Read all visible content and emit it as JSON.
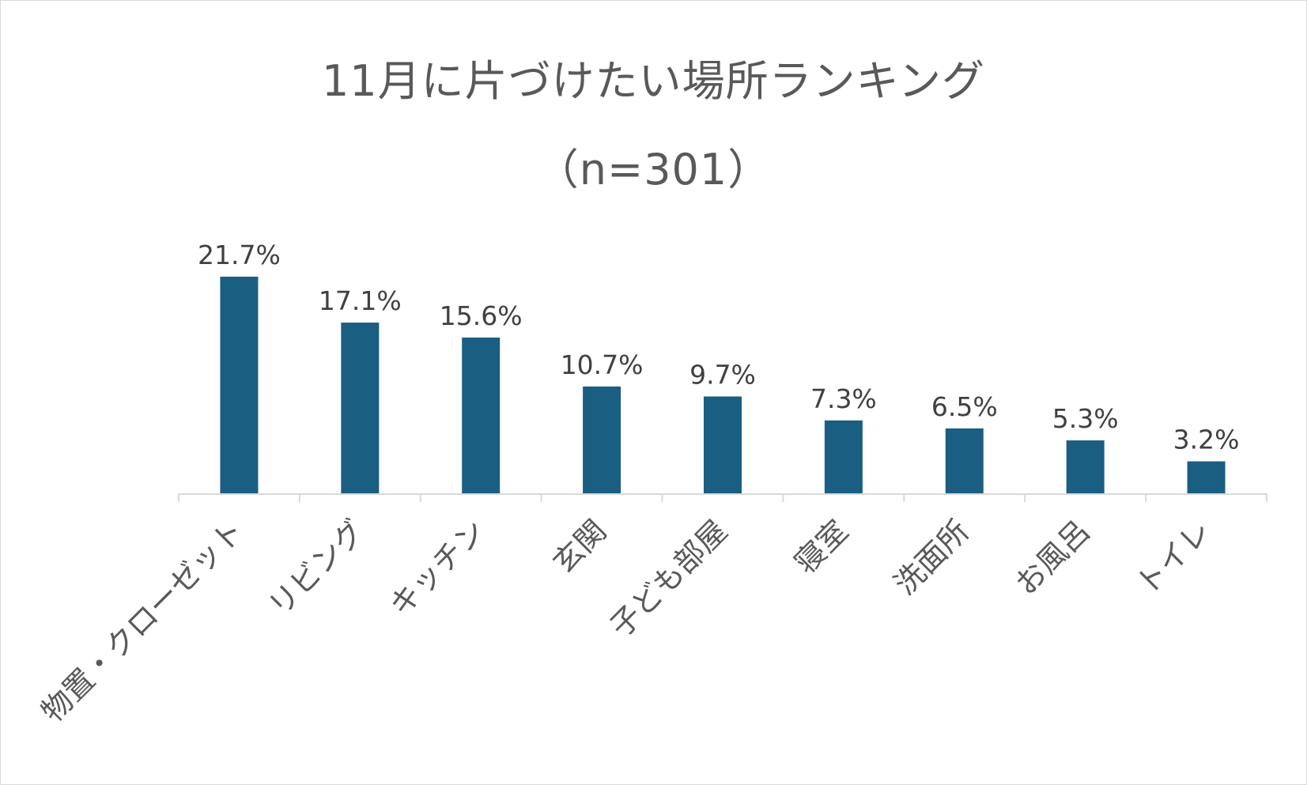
{
  "chart_data": {
    "type": "bar",
    "title": "11月に片づけたい場所ランキング",
    "subtitle": "（n=301）",
    "categories": [
      "物置・クローゼット",
      "リビング",
      "キッチン",
      "玄関",
      "子ども部屋",
      "寝室",
      "洗面所",
      "お風呂",
      "トイレ"
    ],
    "values": [
      21.7,
      17.1,
      15.6,
      10.7,
      9.7,
      7.3,
      6.5,
      5.3,
      3.2
    ],
    "data_labels": [
      "21.7%",
      "17.1%",
      "15.6%",
      "10.7%",
      "9.7%",
      "7.3%",
      "6.5%",
      "5.3%",
      "3.2%"
    ],
    "ylim": [
      0,
      21.7
    ],
    "xlabel": "",
    "ylabel": "",
    "grid": false,
    "legend": "none",
    "bar_color": "#1a5e82",
    "axis_color": "#d9d9d9"
  }
}
